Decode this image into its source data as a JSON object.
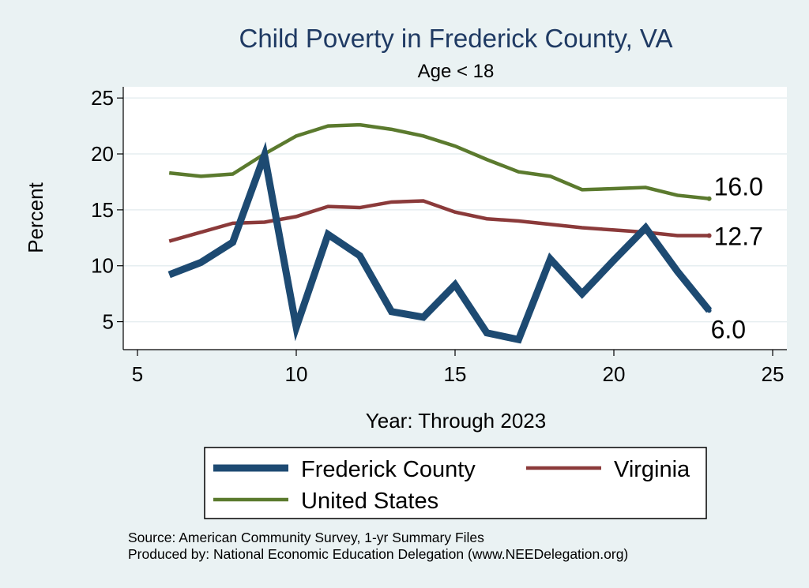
{
  "chart_data": {
    "type": "line",
    "title": "Child Poverty in Frederick County, VA",
    "subtitle": "Age < 18",
    "xlabel": "Year: Through 2023",
    "ylabel": "Percent",
    "xlim": [
      5,
      25
    ],
    "ylim": [
      2.5,
      26
    ],
    "xticks": [
      5,
      10,
      15,
      20,
      25
    ],
    "yticks": [
      5,
      10,
      15,
      20,
      25
    ],
    "grid": true,
    "legend_position": "bottom",
    "x": [
      6,
      7,
      8,
      9,
      10,
      11,
      12,
      13,
      14,
      15,
      16,
      17,
      18,
      19,
      20,
      21,
      22,
      23
    ],
    "series": [
      {
        "name": "Frederick County",
        "color": "#1d4a72",
        "values": [
          9.2,
          10.3,
          12.1,
          19.9,
          4.5,
          12.8,
          10.9,
          5.9,
          5.4,
          8.3,
          4.0,
          3.4,
          10.6,
          7.5,
          10.5,
          13.4,
          9.5,
          6.0
        ],
        "end_label": "6.0"
      },
      {
        "name": "Virginia",
        "color": "#8b3a3a",
        "values": [
          12.2,
          13.0,
          13.8,
          13.9,
          14.4,
          15.3,
          15.2,
          15.7,
          15.8,
          14.8,
          14.2,
          14.0,
          13.7,
          13.4,
          13.2,
          13.0,
          12.7,
          12.7
        ],
        "end_label": "12.7"
      },
      {
        "name": "United States",
        "color": "#5b7a2e",
        "values": [
          18.3,
          18.0,
          18.2,
          20.0,
          21.6,
          22.5,
          22.6,
          22.2,
          21.6,
          20.7,
          19.5,
          18.4,
          18.0,
          16.8,
          16.9,
          17.0,
          16.3,
          16.0
        ],
        "end_label": "16.0"
      }
    ]
  },
  "notes": {
    "source": "Source: American Community Survey, 1-yr Summary Files",
    "produced_by": "Produced by: National Economic Education Delegation (www.NEEDelegation.org)"
  }
}
